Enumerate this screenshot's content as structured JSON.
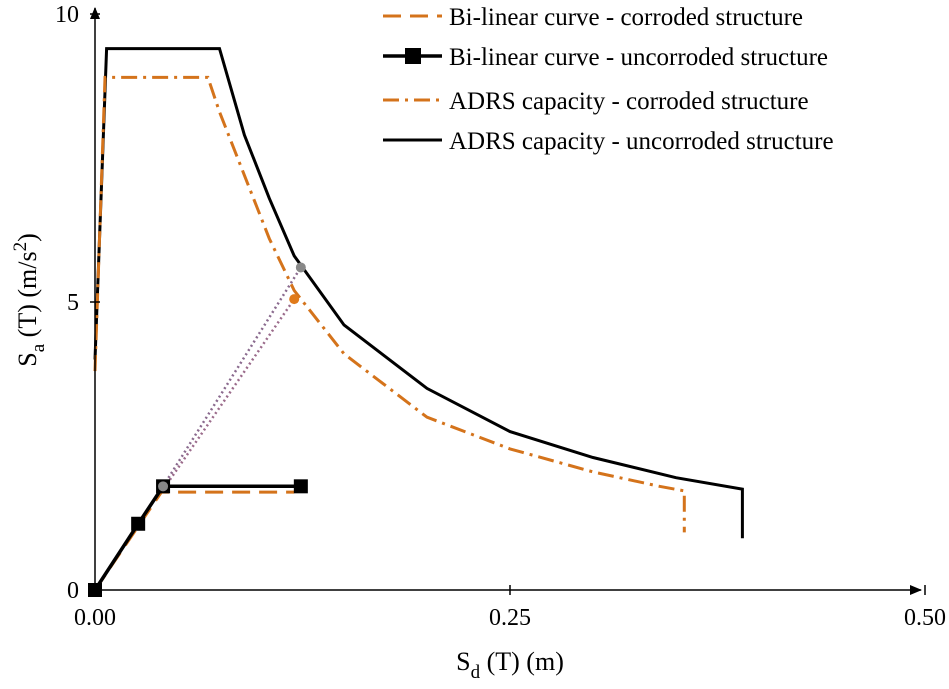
{
  "chart_data": {
    "type": "line",
    "xlabel": {
      "main": "S",
      "sub": "d",
      "rest": " (T) (m)"
    },
    "ylabel": {
      "main": "S",
      "sub": "a",
      "rest": " (T) (m/s",
      "sup": "2",
      "end": ")"
    },
    "xlim": [
      0,
      0.5
    ],
    "ylim": [
      0,
      10
    ],
    "x_ticks": [
      {
        "value": 0,
        "label": "0.00"
      },
      {
        "value": 0.25,
        "label": "0.25"
      },
      {
        "value": 0.5,
        "label": "0.50"
      }
    ],
    "y_ticks": [
      {
        "value": 0,
        "label": "0"
      },
      {
        "value": 5,
        "label": "5"
      },
      {
        "value": 10,
        "label": "10"
      }
    ],
    "grid": false,
    "legend_position": "top-right",
    "series": [
      {
        "name": "Bi-linear curve - corroded structure",
        "style": "dash",
        "color": "#d4731b",
        "marker": "none",
        "points": [
          [
            0,
            0
          ],
          [
            0.04,
            1.7
          ],
          [
            0.12,
            1.7
          ]
        ]
      },
      {
        "name": "Bi-linear curve - uncorroded structure",
        "style": "solid-thick",
        "color": "#000000",
        "marker": "square",
        "points": [
          [
            0,
            0
          ],
          [
            0.026,
            1.15
          ],
          [
            0.041,
            1.8
          ],
          [
            0.124,
            1.8
          ]
        ]
      },
      {
        "name": "ADRS capacity - corroded structure",
        "style": "dashdot",
        "color": "#d4731b",
        "marker": "none",
        "points": [
          [
            0,
            3.8
          ],
          [
            0.006,
            8.9
          ],
          [
            0.068,
            8.9
          ],
          [
            0.075,
            8.3
          ],
          [
            0.09,
            7.2
          ],
          [
            0.105,
            6.1
          ],
          [
            0.12,
            5.2
          ],
          [
            0.15,
            4.1
          ],
          [
            0.2,
            3.0
          ],
          [
            0.25,
            2.45
          ],
          [
            0.3,
            2.05
          ],
          [
            0.34,
            1.8
          ],
          [
            0.355,
            1.72
          ],
          [
            0.355,
            1.0
          ]
        ]
      },
      {
        "name": "ADRS capacity - uncorroded structure",
        "style": "solid",
        "color": "#000000",
        "marker": "none",
        "points": [
          [
            0,
            4.0
          ],
          [
            0.007,
            9.4
          ],
          [
            0.075,
            9.4
          ],
          [
            0.09,
            7.9
          ],
          [
            0.105,
            6.8
          ],
          [
            0.12,
            5.8
          ],
          [
            0.15,
            4.6
          ],
          [
            0.2,
            3.5
          ],
          [
            0.25,
            2.75
          ],
          [
            0.3,
            2.3
          ],
          [
            0.35,
            1.95
          ],
          [
            0.39,
            1.75
          ],
          [
            0.39,
            0.9
          ]
        ]
      }
    ],
    "annotations": [
      {
        "kind": "dotted-line",
        "color": "#9b6b8b",
        "points": [
          [
            0.04,
            1.7
          ],
          [
            0.12,
            5.05
          ]
        ]
      },
      {
        "kind": "dotted-line",
        "color": "#8a6a8e",
        "points": [
          [
            0.041,
            1.8
          ],
          [
            0.124,
            5.6
          ]
        ]
      },
      {
        "kind": "point",
        "color": "#e07a1a",
        "x": 0.12,
        "y": 5.05
      },
      {
        "kind": "point",
        "color": "#888888",
        "x": 0.124,
        "y": 5.6
      },
      {
        "kind": "point",
        "color": "#888888",
        "x": 0.041,
        "y": 1.8
      }
    ]
  }
}
